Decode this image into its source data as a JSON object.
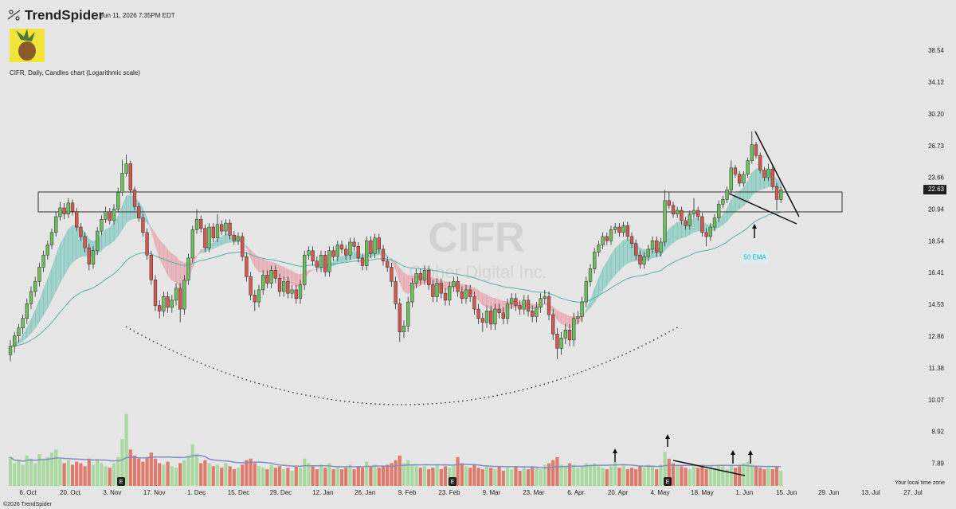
{
  "header": {
    "brand": "TrendSpider",
    "timestamp": "Jun 11, 2026 7:35PM EDT",
    "chart_label": "CIFR, Daily, Candles chart (Logarithmic scale)",
    "footer": "©2026 TrendSpider"
  },
  "chart_data": {
    "type": "candlestick",
    "watermark": "CIFR",
    "watermark_subtitle": "Cipher Digital Inc.",
    "log_scale": true,
    "grid": false,
    "ylim": [
      7.5,
      42
    ],
    "yticks": [
      38.54,
      34.12,
      {
        "value": 30.2,
        "label": "30.20"
      },
      26.73,
      23.66,
      20.94,
      18.54,
      16.41,
      14.53,
      12.86,
      11.38,
      10.07,
      8.92,
      7.89
    ],
    "x_labels": [
      "6. Oct",
      "20. Oct",
      "3. Nov",
      "17. Nov",
      "1. Dec",
      "15. Dec",
      "29. Dec",
      "12. Jan",
      "26. Jan",
      "9. Feb",
      "23. Feb",
      "9. Mar",
      "23. Mar",
      "6. Apr",
      "20. Apr",
      "4. May",
      "18. May",
      "1. Jun",
      "15. Jun",
      "29. Jun",
      "13. Jul",
      "27. Jul"
    ],
    "colors": {
      "up": "#6dbf5e",
      "down": "#d5574e",
      "volume_up": "#a9d9a0",
      "volume_down": "#de7b6c"
    },
    "last_price": 22.63,
    "ema_label": "50 EMA",
    "earnings_markers": [
      "E",
      "E",
      "E"
    ],
    "timezone_label": "Your local time zone",
    "volume_lim": [
      0,
      100
    ],
    "candles": [
      [
        12.0,
        12.7,
        11.7,
        12.4
      ],
      [
        12.4,
        13.1,
        12.1,
        12.9
      ],
      [
        12.9,
        13.5,
        12.6,
        13.3
      ],
      [
        13.3,
        14.0,
        13.0,
        13.8
      ],
      [
        13.8,
        14.9,
        13.5,
        14.6
      ],
      [
        14.6,
        15.6,
        14.3,
        15.3
      ],
      [
        15.3,
        16.2,
        15.0,
        15.9
      ],
      [
        15.9,
        17.1,
        15.6,
        16.8
      ],
      [
        16.8,
        17.9,
        16.5,
        17.6
      ],
      [
        17.6,
        18.6,
        17.3,
        18.3
      ],
      [
        18.3,
        19.5,
        18.0,
        19.2
      ],
      [
        19.2,
        20.8,
        18.9,
        20.4
      ],
      [
        20.4,
        21.6,
        20.1,
        21.1
      ],
      [
        21.1,
        21.5,
        20.2,
        20.6
      ],
      [
        20.6,
        21.9,
        20.3,
        21.5
      ],
      [
        21.5,
        21.8,
        20.5,
        20.8
      ],
      [
        20.8,
        21.1,
        19.3,
        19.6
      ],
      [
        19.6,
        19.9,
        18.6,
        18.9
      ],
      [
        18.9,
        19.2,
        17.8,
        18.1
      ],
      [
        18.1,
        18.4,
        16.6,
        17.0
      ],
      [
        17.0,
        18.2,
        16.7,
        17.9
      ],
      [
        17.9,
        19.6,
        17.6,
        19.3
      ],
      [
        19.3,
        20.5,
        19.0,
        20.2
      ],
      [
        20.2,
        21.2,
        19.9,
        20.8
      ],
      [
        20.8,
        21.1,
        19.8,
        20.1
      ],
      [
        20.1,
        21.4,
        19.8,
        21.0
      ],
      [
        21.0,
        22.8,
        20.7,
        22.4
      ],
      [
        22.4,
        25.4,
        22.1,
        24.1
      ],
      [
        24.1,
        25.9,
        23.8,
        25.0
      ],
      [
        25.0,
        25.3,
        22.3,
        22.6
      ],
      [
        22.6,
        22.9,
        20.9,
        21.2
      ],
      [
        21.2,
        21.5,
        20.0,
        20.3
      ],
      [
        20.3,
        20.6,
        18.9,
        19.2
      ],
      [
        19.2,
        19.5,
        17.3,
        17.6
      ],
      [
        17.6,
        17.9,
        15.7,
        16.0
      ],
      [
        16.0,
        16.3,
        14.2,
        14.5
      ],
      [
        14.5,
        14.8,
        13.8,
        14.2
      ],
      [
        14.2,
        15.3,
        13.9,
        15.0
      ],
      [
        15.0,
        15.3,
        14.1,
        14.4
      ],
      [
        14.4,
        15.1,
        14.1,
        14.8
      ],
      [
        14.8,
        15.8,
        14.5,
        15.5
      ],
      [
        15.5,
        15.8,
        13.6,
        14.3
      ],
      [
        14.3,
        16.3,
        14.0,
        16.0
      ],
      [
        16.0,
        17.7,
        15.7,
        17.4
      ],
      [
        17.4,
        19.7,
        17.1,
        19.4
      ],
      [
        19.4,
        21.0,
        19.1,
        20.2
      ],
      [
        20.2,
        20.5,
        19.2,
        19.5
      ],
      [
        19.5,
        19.8,
        17.8,
        18.1
      ],
      [
        18.1,
        19.9,
        17.8,
        19.6
      ],
      [
        19.6,
        19.9,
        18.5,
        18.8
      ],
      [
        18.8,
        20.6,
        18.5,
        19.8
      ],
      [
        19.8,
        20.1,
        19.0,
        19.3
      ],
      [
        19.3,
        20.2,
        19.0,
        19.9
      ],
      [
        19.9,
        20.2,
        18.7,
        19.0
      ],
      [
        19.0,
        19.3,
        18.3,
        18.6
      ],
      [
        18.6,
        19.2,
        18.3,
        18.9
      ],
      [
        18.9,
        19.2,
        17.2,
        17.5
      ],
      [
        17.5,
        17.8,
        15.9,
        16.2
      ],
      [
        16.2,
        16.5,
        14.8,
        15.1
      ],
      [
        15.1,
        15.4,
        14.2,
        14.7
      ],
      [
        14.7,
        15.7,
        14.4,
        15.4
      ],
      [
        15.4,
        16.6,
        15.1,
        16.3
      ],
      [
        16.3,
        16.6,
        15.5,
        15.8
      ],
      [
        15.8,
        16.9,
        15.5,
        16.6
      ],
      [
        16.6,
        16.9,
        15.8,
        16.1
      ],
      [
        16.1,
        16.4,
        15.0,
        15.3
      ],
      [
        15.3,
        16.2,
        15.0,
        15.9
      ],
      [
        15.9,
        16.2,
        14.9,
        15.2
      ],
      [
        15.2,
        15.7,
        14.9,
        15.4
      ],
      [
        15.4,
        15.7,
        14.6,
        14.9
      ],
      [
        14.9,
        16.0,
        14.6,
        15.7
      ],
      [
        15.7,
        17.9,
        15.4,
        17.6
      ],
      [
        17.6,
        18.2,
        17.3,
        17.9
      ],
      [
        17.9,
        18.2,
        16.9,
        17.2
      ],
      [
        17.2,
        17.5,
        16.5,
        16.8
      ],
      [
        16.8,
        17.9,
        16.5,
        17.6
      ],
      [
        17.6,
        17.9,
        16.2,
        16.5
      ],
      [
        16.5,
        18.2,
        16.2,
        17.9
      ],
      [
        17.9,
        18.2,
        17.2,
        17.5
      ],
      [
        17.5,
        18.6,
        17.2,
        18.3
      ],
      [
        18.3,
        18.6,
        17.7,
        18.0
      ],
      [
        18.0,
        18.3,
        17.3,
        17.6
      ],
      [
        17.6,
        18.8,
        17.3,
        18.5
      ],
      [
        18.5,
        18.8,
        17.9,
        18.2
      ],
      [
        18.2,
        18.5,
        17.1,
        17.4
      ],
      [
        17.4,
        17.7,
        16.6,
        16.9
      ],
      [
        16.9,
        18.9,
        16.6,
        18.6
      ],
      [
        18.6,
        18.9,
        17.4,
        17.7
      ],
      [
        17.7,
        19.1,
        17.4,
        18.8
      ],
      [
        18.8,
        19.1,
        17.7,
        18.0
      ],
      [
        18.0,
        18.3,
        16.9,
        17.2
      ],
      [
        17.2,
        17.5,
        16.5,
        16.8
      ],
      [
        16.8,
        17.1,
        15.6,
        15.9
      ],
      [
        15.9,
        16.2,
        14.3,
        14.6
      ],
      [
        14.6,
        14.9,
        12.6,
        13.1
      ],
      [
        13.1,
        13.7,
        12.8,
        13.4
      ],
      [
        13.4,
        15.0,
        13.1,
        14.7
      ],
      [
        14.7,
        16.1,
        14.4,
        15.8
      ],
      [
        15.8,
        16.7,
        15.5,
        16.4
      ],
      [
        16.4,
        16.7,
        15.7,
        16.0
      ],
      [
        16.0,
        16.9,
        15.7,
        16.6
      ],
      [
        16.6,
        16.9,
        15.4,
        15.7
      ],
      [
        15.7,
        16.0,
        14.7,
        15.0
      ],
      [
        15.0,
        16.1,
        14.7,
        15.8
      ],
      [
        15.8,
        16.1,
        14.9,
        15.2
      ],
      [
        15.2,
        15.5,
        14.5,
        14.8
      ],
      [
        14.8,
        15.9,
        14.5,
        15.6
      ],
      [
        15.6,
        16.2,
        15.3,
        15.9
      ],
      [
        15.9,
        16.2,
        15.0,
        15.3
      ],
      [
        15.3,
        15.6,
        14.6,
        14.9
      ],
      [
        14.9,
        15.7,
        14.6,
        15.4
      ],
      [
        15.4,
        15.7,
        14.7,
        15.0
      ],
      [
        15.0,
        15.3,
        14.0,
        14.3
      ],
      [
        14.3,
        14.6,
        13.5,
        13.8
      ],
      [
        13.8,
        14.1,
        13.1,
        13.6
      ],
      [
        13.6,
        14.5,
        13.3,
        14.2
      ],
      [
        14.2,
        14.5,
        13.2,
        13.5
      ],
      [
        13.5,
        14.6,
        13.2,
        14.3
      ],
      [
        14.3,
        14.6,
        13.8,
        14.1
      ],
      [
        14.1,
        14.4,
        13.5,
        13.8
      ],
      [
        13.8,
        14.9,
        13.5,
        14.6
      ],
      [
        14.6,
        15.2,
        14.3,
        14.9
      ],
      [
        14.9,
        15.2,
        14.2,
        14.5
      ],
      [
        14.5,
        14.8,
        14.0,
        14.3
      ],
      [
        14.3,
        15.1,
        14.0,
        14.8
      ],
      [
        14.8,
        15.1,
        13.9,
        14.2
      ],
      [
        14.2,
        14.5,
        13.6,
        13.9
      ],
      [
        13.9,
        14.7,
        13.6,
        14.4
      ],
      [
        14.4,
        15.2,
        14.1,
        14.9
      ],
      [
        14.9,
        15.4,
        14.6,
        15.0
      ],
      [
        15.0,
        15.3,
        13.7,
        14.0
      ],
      [
        14.0,
        14.3,
        12.7,
        13.0
      ],
      [
        13.0,
        13.3,
        11.8,
        12.3
      ],
      [
        12.3,
        13.1,
        12.0,
        12.8
      ],
      [
        12.8,
        13.5,
        12.5,
        13.2
      ],
      [
        13.2,
        13.5,
        12.4,
        12.7
      ],
      [
        12.7,
        14.1,
        12.4,
        13.8
      ],
      [
        13.8,
        14.2,
        13.5,
        13.9
      ],
      [
        13.9,
        15.0,
        13.6,
        14.7
      ],
      [
        14.7,
        16.2,
        14.4,
        15.9
      ],
      [
        15.9,
        17.0,
        15.6,
        16.7
      ],
      [
        16.7,
        18.1,
        16.4,
        17.8
      ],
      [
        17.8,
        18.6,
        17.5,
        18.3
      ],
      [
        18.3,
        19.2,
        18.0,
        18.9
      ],
      [
        18.9,
        19.2,
        18.3,
        18.6
      ],
      [
        18.6,
        19.7,
        18.3,
        19.4
      ],
      [
        19.4,
        19.9,
        19.1,
        19.6
      ],
      [
        19.6,
        19.9,
        18.9,
        19.2
      ],
      [
        19.2,
        20.0,
        18.9,
        19.7
      ],
      [
        19.7,
        20.0,
        18.6,
        18.9
      ],
      [
        18.9,
        19.2,
        18.1,
        18.4
      ],
      [
        18.4,
        18.7,
        17.3,
        17.6
      ],
      [
        17.6,
        17.9,
        16.7,
        17.0
      ],
      [
        17.0,
        17.8,
        16.7,
        17.5
      ],
      [
        17.5,
        18.3,
        17.2,
        18.0
      ],
      [
        18.0,
        18.9,
        17.7,
        18.6
      ],
      [
        18.6,
        18.9,
        17.5,
        17.8
      ],
      [
        17.8,
        18.8,
        17.5,
        18.5
      ],
      [
        18.5,
        22.6,
        18.2,
        21.7
      ],
      [
        21.7,
        22.4,
        21.0,
        21.3
      ],
      [
        21.3,
        21.6,
        20.3,
        20.6
      ],
      [
        20.6,
        21.2,
        20.3,
        20.9
      ],
      [
        20.9,
        21.2,
        19.8,
        20.1
      ],
      [
        20.1,
        20.4,
        19.4,
        19.7
      ],
      [
        19.7,
        20.9,
        19.4,
        20.6
      ],
      [
        20.6,
        21.9,
        20.3,
        20.9
      ],
      [
        20.9,
        21.2,
        20.1,
        20.4
      ],
      [
        20.4,
        20.7,
        18.9,
        19.2
      ],
      [
        19.2,
        19.5,
        18.2,
        18.9
      ],
      [
        18.9,
        19.9,
        18.6,
        19.6
      ],
      [
        19.6,
        20.6,
        19.3,
        20.3
      ],
      [
        20.3,
        21.7,
        20.0,
        21.4
      ],
      [
        21.4,
        22.1,
        21.1,
        21.8
      ],
      [
        21.8,
        22.9,
        21.5,
        22.6
      ],
      [
        22.6,
        25.3,
        22.3,
        24.6
      ],
      [
        24.6,
        24.9,
        23.7,
        24.0
      ],
      [
        24.0,
        24.3,
        22.9,
        23.2
      ],
      [
        23.2,
        24.3,
        22.9,
        24.0
      ],
      [
        24.0,
        25.6,
        23.7,
        25.3
      ],
      [
        25.3,
        28.3,
        25.0,
        26.9
      ],
      [
        26.9,
        27.2,
        25.5,
        25.8
      ],
      [
        25.8,
        26.1,
        24.1,
        24.4
      ],
      [
        24.4,
        24.7,
        23.4,
        23.7
      ],
      [
        23.7,
        25.0,
        23.4,
        24.5
      ],
      [
        24.5,
        24.8,
        22.6,
        22.9
      ],
      [
        22.9,
        23.2,
        20.9,
        21.8
      ],
      [
        21.8,
        22.9,
        21.5,
        22.63
      ]
    ],
    "volume": [
      38,
      30,
      34,
      28,
      40,
      36,
      30,
      42,
      35,
      38,
      44,
      48,
      36,
      30,
      34,
      28,
      32,
      30,
      26,
      36,
      28,
      34,
      30,
      26,
      24,
      30,
      38,
      62,
      95,
      48,
      40,
      36,
      32,
      38,
      44,
      36,
      30,
      28,
      32,
      26,
      24,
      30,
      34,
      40,
      55,
      42,
      30,
      34,
      30,
      26,
      28,
      24,
      30,
      26,
      22,
      24,
      28,
      34,
      36,
      30,
      26,
      24,
      22,
      28,
      24,
      26,
      22,
      24,
      20,
      26,
      24,
      36,
      30,
      26,
      22,
      28,
      24,
      30,
      22,
      26,
      22,
      24,
      28,
      22,
      26,
      24,
      32,
      26,
      28,
      24,
      26,
      28,
      30,
      34,
      40,
      30,
      34,
      28,
      26,
      24,
      26,
      22,
      24,
      28,
      22,
      26,
      24,
      28,
      38,
      30,
      26,
      24,
      28,
      24,
      22,
      26,
      24,
      22,
      26,
      20,
      24,
      22,
      26,
      20,
      24,
      22,
      26,
      24,
      22,
      28,
      30,
      34,
      38,
      28,
      26,
      30,
      28,
      24,
      26,
      30,
      28,
      30,
      26,
      24,
      22,
      26,
      32,
      24,
      28,
      22,
      24,
      22,
      26,
      24,
      28,
      26,
      22,
      28,
      45,
      36,
      30,
      28,
      26,
      24,
      22,
      26,
      24,
      28,
      22,
      26,
      24,
      28,
      26,
      22,
      28,
      24,
      26,
      30,
      32,
      28,
      26,
      24,
      22,
      24,
      22,
      26,
      20
    ]
  }
}
